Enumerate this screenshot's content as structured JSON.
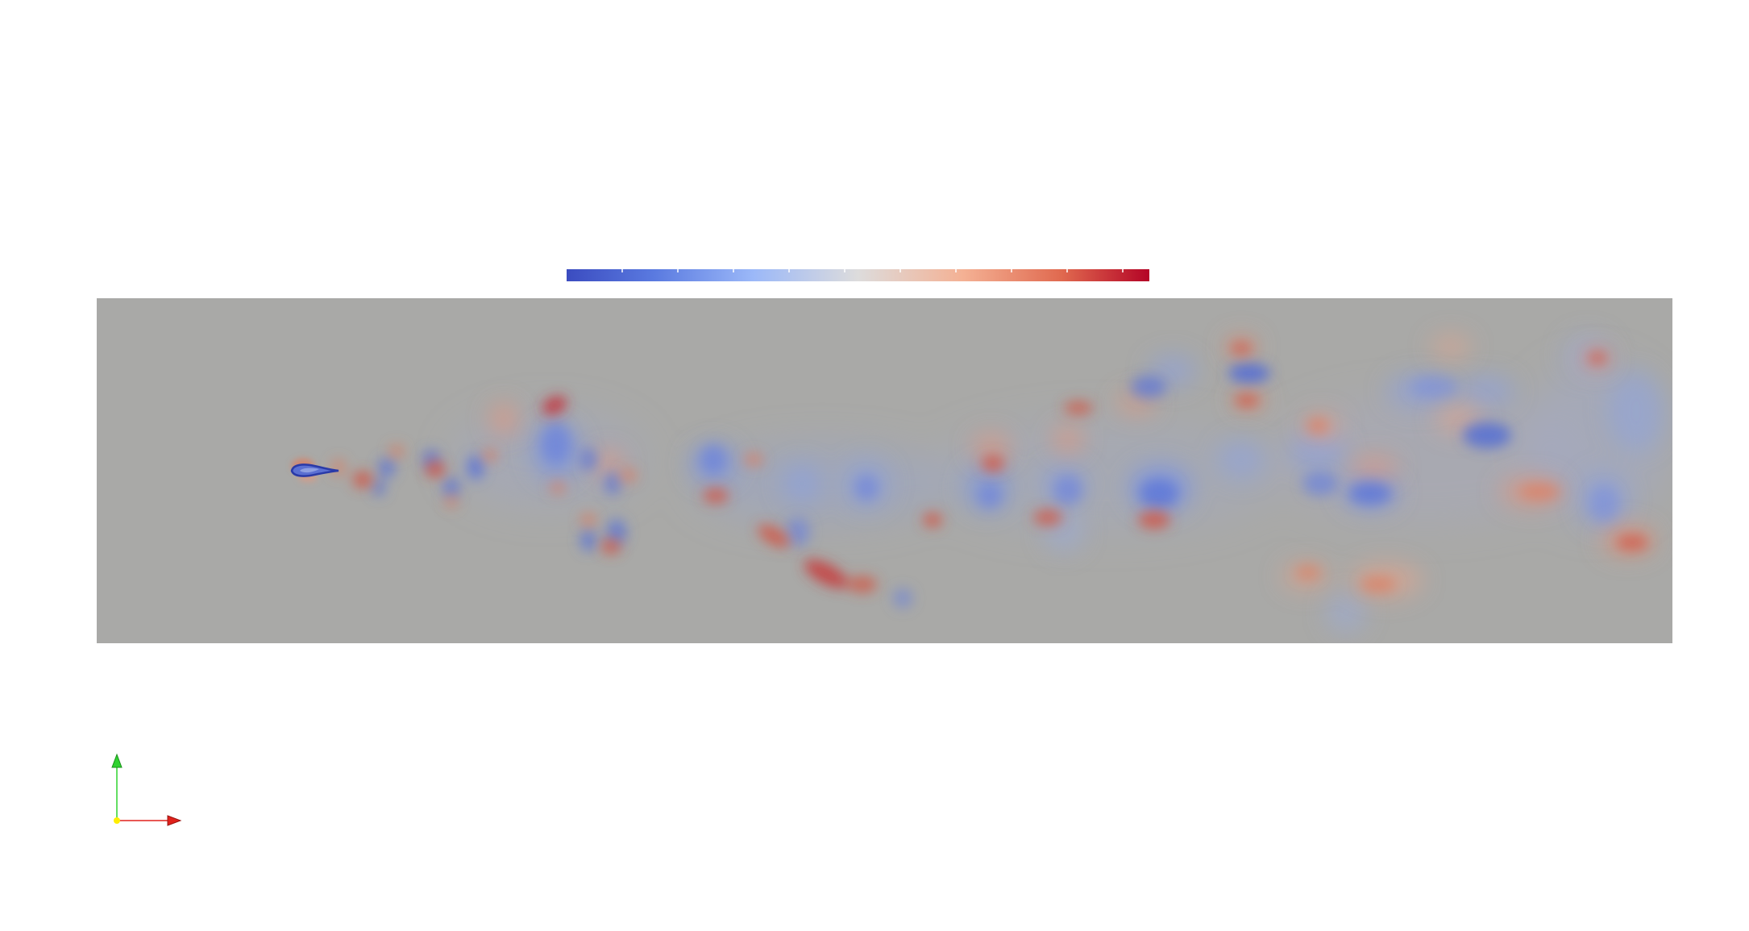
{
  "scene": {
    "type": "2D scalar field visualization (vorticity-like wake behind an airfoil)",
    "background": "#ffffff",
    "field_base_color": "#a9a9a7"
  },
  "colorbar": {
    "colormap": "cool to warm",
    "colors": {
      "low": "#3b4cc0",
      "mid": "#dddcdc",
      "high": "#b40426"
    },
    "tick_count": 11
  },
  "axes_triad": {
    "x_axis_color": "#e0211b",
    "y_axis_color": "#2fd22f",
    "origin_color": "#ffee00"
  },
  "icons": {
    "orientation": "axes-triad-icon",
    "airfoil": "airfoil-shape-icon"
  }
}
